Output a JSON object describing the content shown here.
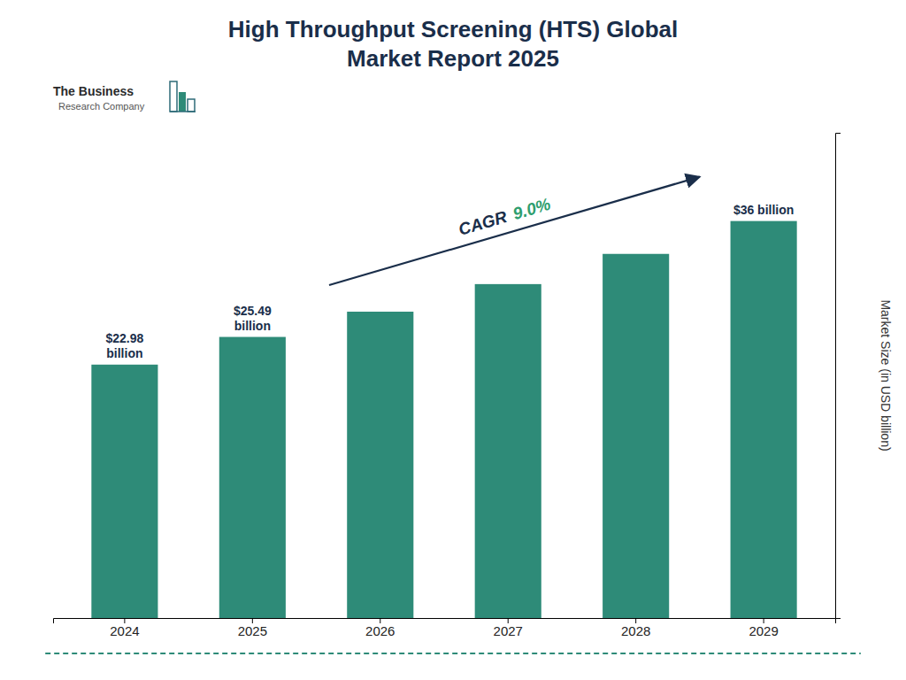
{
  "chart_data": {
    "type": "bar",
    "title": "High Throughput Screening (HTS) Global\nMarket Report 2025",
    "categories": [
      "2024",
      "2025",
      "2026",
      "2027",
      "2028",
      "2029"
    ],
    "values": [
      22.98,
      25.49,
      27.78,
      30.28,
      33.02,
      36.0
    ],
    "data_labels": true,
    "value_labels": [
      "$22.98\nbillion",
      "$25.49\nbillion",
      null,
      null,
      null,
      "$36 billion"
    ],
    "color": "#2e8b78",
    "y_label": "Market Size (in USD billion)",
    "ylim": [
      0,
      44
    ],
    "tick_labels": "x",
    "grid": false,
    "annotations": [
      "CAGR",
      "9.0%",
      "The Business",
      "Research Company"
    ]
  }
}
